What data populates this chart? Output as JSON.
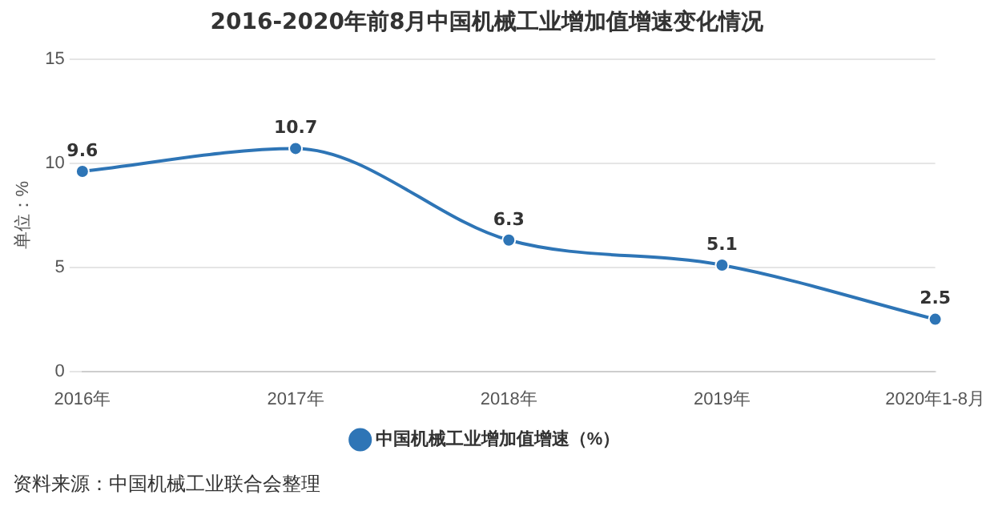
{
  "chart_data": {
    "type": "line",
    "title": "2016-2020年前8月中国机械工业增加值增速变化情况",
    "ylabel": "单位：%",
    "categories": [
      "2016年",
      "2017年",
      "2018年",
      "2019年",
      "2020年1-8月"
    ],
    "series": [
      {
        "name": "中国机械工业增加值增速（%）",
        "color": "#2e75b6",
        "values": [
          9.6,
          10.7,
          6.3,
          5.1,
          2.5
        ]
      }
    ],
    "ylim": [
      0,
      15
    ],
    "yticks": [
      0,
      5,
      10,
      15
    ],
    "grid": "y",
    "legend": "bottom",
    "marker": "circle",
    "line_style": "solid",
    "data_labels": true,
    "annotations": [
      "资料来源：中国机械工业联合会整理"
    ]
  }
}
